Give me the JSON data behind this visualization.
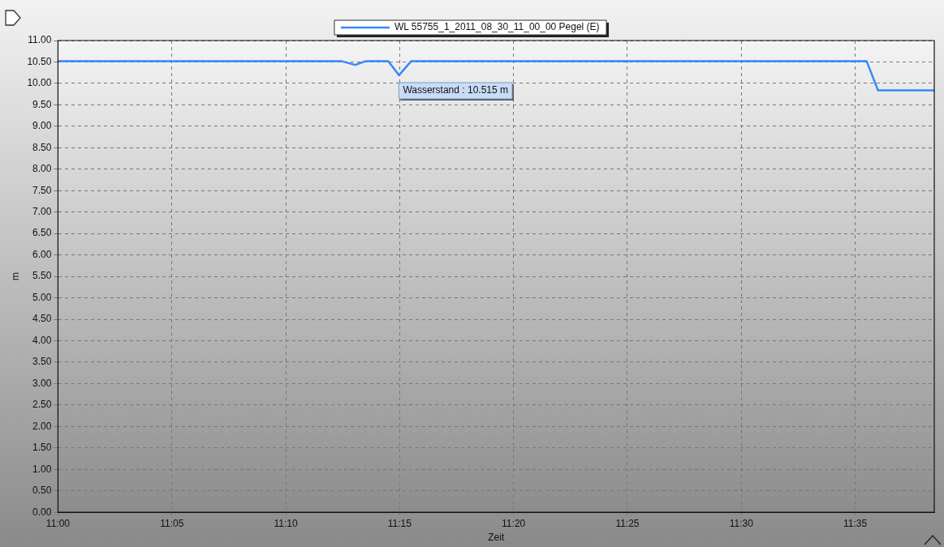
{
  "chart_data": {
    "type": "line",
    "xlabel": "Zeit",
    "ylabel": "m",
    "legend": "top",
    "grid": true,
    "marker": "none",
    "line_style": "solid",
    "annotations": [
      "Wasserstand : 10.515 m"
    ],
    "xlim": [
      11,
      11.6412
    ],
    "xticks": [
      {
        "value": 11,
        "label": "11:00"
      },
      {
        "value": 11.083333,
        "label": "11:05"
      },
      {
        "value": 11.166667,
        "label": "11:10"
      },
      {
        "value": 11.25,
        "label": "11:15"
      },
      {
        "value": 11.333333,
        "label": "11:20"
      },
      {
        "value": 11.416667,
        "label": "11:25"
      },
      {
        "value": 11.5,
        "label": "11:30"
      },
      {
        "value": 11.583333,
        "label": "11:35"
      }
    ],
    "ylim": [
      0,
      11
    ],
    "yticks": [
      {
        "value": 0,
        "label": "0.00"
      },
      {
        "value": 0.5,
        "label": "0.50"
      },
      {
        "value": 1,
        "label": "1.00"
      },
      {
        "value": 1.5,
        "label": "1.50"
      },
      {
        "value": 2,
        "label": "2.00"
      },
      {
        "value": 2.5,
        "label": "2.50"
      },
      {
        "value": 3,
        "label": "3.00"
      },
      {
        "value": 3.5,
        "label": "3.50"
      },
      {
        "value": 4,
        "label": "4.00"
      },
      {
        "value": 4.5,
        "label": "4.50"
      },
      {
        "value": 5,
        "label": "5.00"
      },
      {
        "value": 5.5,
        "label": "5.50"
      },
      {
        "value": 6,
        "label": "6.00"
      },
      {
        "value": 6.5,
        "label": "6.50"
      },
      {
        "value": 7,
        "label": "7.00"
      },
      {
        "value": 7.5,
        "label": "7.50"
      },
      {
        "value": 8,
        "label": "8.00"
      },
      {
        "value": 8.5,
        "label": "8.50"
      },
      {
        "value": 9,
        "label": "9.00"
      },
      {
        "value": 9.5,
        "label": "9.50"
      },
      {
        "value": 10,
        "label": "10.00"
      },
      {
        "value": 10.5,
        "label": "10.50"
      },
      {
        "value": 11,
        "label": "11.00"
      }
    ],
    "series": [
      {
        "name": "WL 55755_1_2011_08_30_11_00_00 Pegel (E)",
        "color": "#3388ff",
        "x": [
          11,
          11.2073,
          11.2175,
          11.2253,
          11.2417,
          11.2495,
          11.2585,
          11.5917,
          11.6,
          11.6412
        ],
        "values": [
          10.52,
          10.52,
          10.43,
          10.52,
          10.52,
          10.19,
          10.52,
          10.52,
          9.84,
          9.84
        ]
      }
    ]
  }
}
